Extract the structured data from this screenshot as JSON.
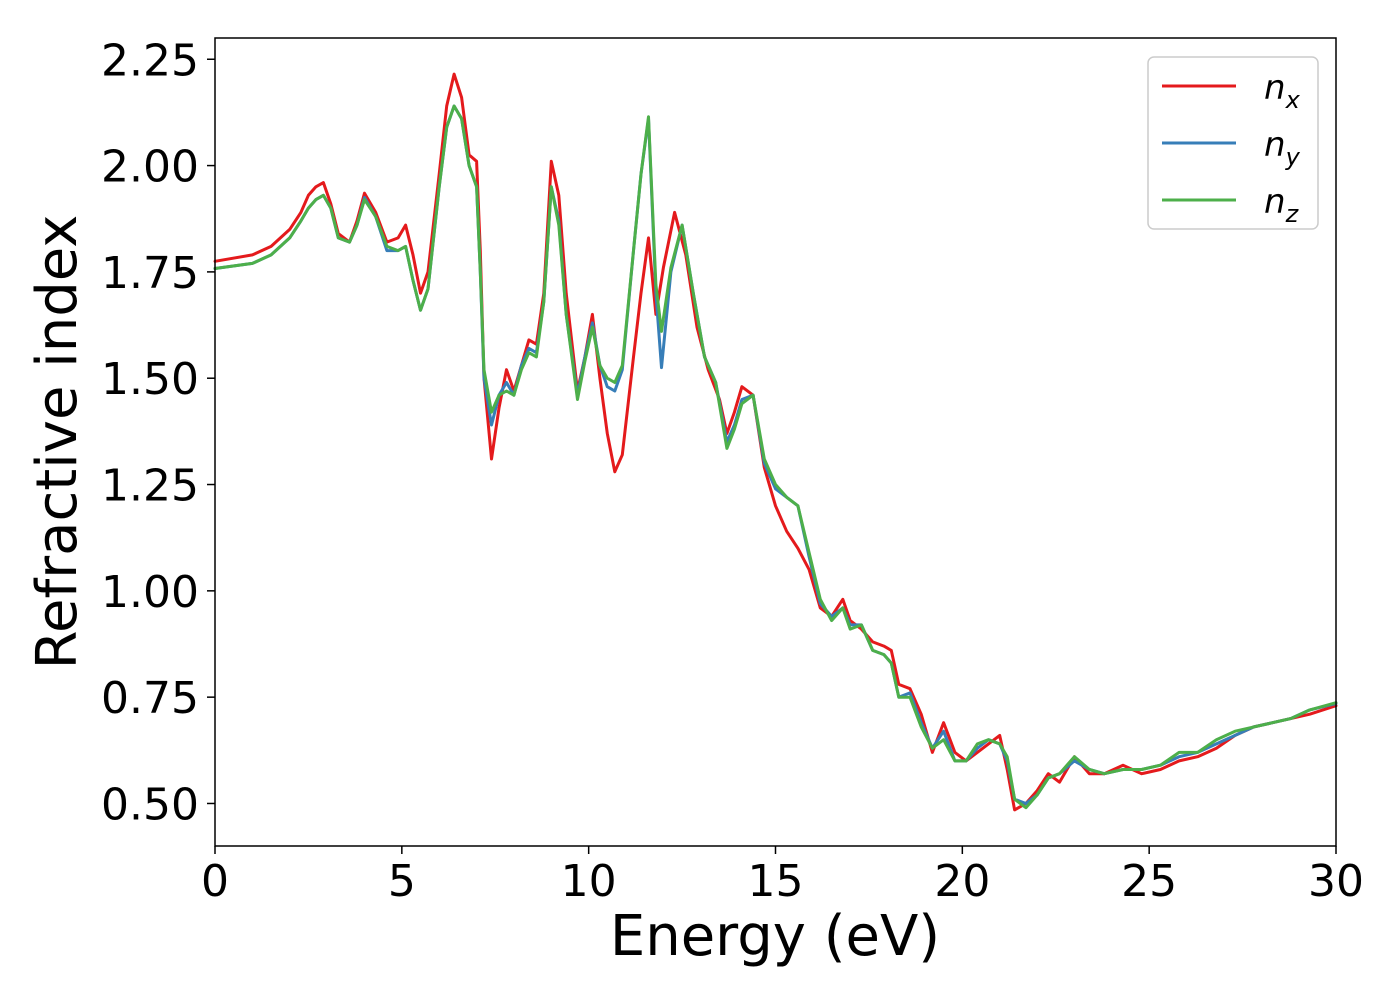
{
  "chart_data": {
    "type": "line",
    "title": "",
    "xlabel": "Energy (eV)",
    "ylabel": "Refractive index",
    "xlim": [
      0,
      30
    ],
    "ylim": [
      0.4,
      2.3
    ],
    "xticks": [
      0,
      5,
      10,
      15,
      20,
      25,
      30
    ],
    "xtick_labels": [
      "0",
      "5",
      "10",
      "15",
      "20",
      "25",
      "30"
    ],
    "yticks": [
      0.5,
      0.75,
      1.0,
      1.25,
      1.5,
      1.75,
      2.0,
      2.25
    ],
    "ytick_labels": [
      "0.50",
      "0.75",
      "1.00",
      "1.25",
      "1.50",
      "1.75",
      "2.00",
      "2.25"
    ],
    "grid": false,
    "legend": "top-right",
    "series": [
      {
        "name": "n",
        "subscript": "x",
        "color": "#e41a1c",
        "points": [
          [
            0,
            1.775
          ],
          [
            1,
            1.79
          ],
          [
            1.5,
            1.81
          ],
          [
            2,
            1.85
          ],
          [
            2.3,
            1.89
          ],
          [
            2.5,
            1.93
          ],
          [
            2.7,
            1.95
          ],
          [
            2.9,
            1.96
          ],
          [
            3.1,
            1.91
          ],
          [
            3.3,
            1.84
          ],
          [
            3.6,
            1.82
          ],
          [
            3.8,
            1.87
          ],
          [
            4.0,
            1.935
          ],
          [
            4.3,
            1.89
          ],
          [
            4.6,
            1.82
          ],
          [
            4.9,
            1.83
          ],
          [
            5.1,
            1.86
          ],
          [
            5.3,
            1.79
          ],
          [
            5.5,
            1.7
          ],
          [
            5.7,
            1.75
          ],
          [
            6.0,
            1.98
          ],
          [
            6.2,
            2.14
          ],
          [
            6.4,
            2.215
          ],
          [
            6.6,
            2.16
          ],
          [
            6.8,
            2.025
          ],
          [
            7.0,
            2.01
          ],
          [
            7.1,
            1.8
          ],
          [
            7.2,
            1.5
          ],
          [
            7.4,
            1.31
          ],
          [
            7.6,
            1.43
          ],
          [
            7.8,
            1.52
          ],
          [
            8.0,
            1.47
          ],
          [
            8.2,
            1.53
          ],
          [
            8.4,
            1.59
          ],
          [
            8.6,
            1.58
          ],
          [
            8.8,
            1.7
          ],
          [
            9.0,
            2.01
          ],
          [
            9.2,
            1.93
          ],
          [
            9.4,
            1.7
          ],
          [
            9.7,
            1.47
          ],
          [
            9.9,
            1.55
          ],
          [
            10.1,
            1.65
          ],
          [
            10.3,
            1.5
          ],
          [
            10.5,
            1.37
          ],
          [
            10.7,
            1.28
          ],
          [
            10.9,
            1.32
          ],
          [
            11.2,
            1.55
          ],
          [
            11.4,
            1.7
          ],
          [
            11.6,
            1.83
          ],
          [
            11.8,
            1.65
          ],
          [
            12.0,
            1.76
          ],
          [
            12.3,
            1.89
          ],
          [
            12.6,
            1.79
          ],
          [
            12.9,
            1.62
          ],
          [
            13.2,
            1.52
          ],
          [
            13.5,
            1.45
          ],
          [
            13.7,
            1.37
          ],
          [
            13.9,
            1.42
          ],
          [
            14.1,
            1.48
          ],
          [
            14.4,
            1.46
          ],
          [
            14.7,
            1.29
          ],
          [
            15.0,
            1.2
          ],
          [
            15.3,
            1.14
          ],
          [
            15.6,
            1.1
          ],
          [
            15.9,
            1.05
          ],
          [
            16.2,
            0.96
          ],
          [
            16.5,
            0.94
          ],
          [
            16.8,
            0.98
          ],
          [
            17.0,
            0.93
          ],
          [
            17.3,
            0.91
          ],
          [
            17.6,
            0.88
          ],
          [
            17.9,
            0.87
          ],
          [
            18.1,
            0.86
          ],
          [
            18.3,
            0.78
          ],
          [
            18.6,
            0.77
          ],
          [
            18.9,
            0.71
          ],
          [
            19.2,
            0.62
          ],
          [
            19.5,
            0.69
          ],
          [
            19.8,
            0.62
          ],
          [
            20.1,
            0.6
          ],
          [
            20.4,
            0.62
          ],
          [
            20.7,
            0.64
          ],
          [
            21.0,
            0.66
          ],
          [
            21.2,
            0.58
          ],
          [
            21.4,
            0.485
          ],
          [
            21.7,
            0.5
          ],
          [
            22.0,
            0.53
          ],
          [
            22.3,
            0.57
          ],
          [
            22.6,
            0.55
          ],
          [
            23.0,
            0.61
          ],
          [
            23.4,
            0.57
          ],
          [
            23.8,
            0.57
          ],
          [
            24.3,
            0.59
          ],
          [
            24.8,
            0.57
          ],
          [
            25.3,
            0.58
          ],
          [
            25.8,
            0.6
          ],
          [
            26.3,
            0.61
          ],
          [
            26.8,
            0.63
          ],
          [
            27.3,
            0.66
          ],
          [
            27.8,
            0.68
          ],
          [
            28.3,
            0.69
          ],
          [
            28.8,
            0.7
          ],
          [
            29.3,
            0.71
          ],
          [
            30,
            0.73
          ]
        ]
      },
      {
        "name": "n",
        "subscript": "y",
        "color": "#377eb8",
        "points": [
          [
            0,
            1.758
          ],
          [
            1,
            1.77
          ],
          [
            1.5,
            1.79
          ],
          [
            2,
            1.83
          ],
          [
            2.3,
            1.87
          ],
          [
            2.5,
            1.9
          ],
          [
            2.7,
            1.92
          ],
          [
            2.9,
            1.93
          ],
          [
            3.1,
            1.9
          ],
          [
            3.3,
            1.83
          ],
          [
            3.6,
            1.82
          ],
          [
            3.8,
            1.86
          ],
          [
            4.0,
            1.925
          ],
          [
            4.3,
            1.88
          ],
          [
            4.6,
            1.8
          ],
          [
            4.9,
            1.8
          ],
          [
            5.1,
            1.81
          ],
          [
            5.3,
            1.73
          ],
          [
            5.5,
            1.66
          ],
          [
            5.7,
            1.71
          ],
          [
            6.0,
            1.95
          ],
          [
            6.2,
            2.09
          ],
          [
            6.4,
            2.14
          ],
          [
            6.6,
            2.11
          ],
          [
            6.8,
            2.0
          ],
          [
            7.0,
            1.95
          ],
          [
            7.1,
            1.75
          ],
          [
            7.2,
            1.5
          ],
          [
            7.4,
            1.39
          ],
          [
            7.6,
            1.46
          ],
          [
            7.8,
            1.49
          ],
          [
            8.0,
            1.46
          ],
          [
            8.2,
            1.53
          ],
          [
            8.4,
            1.57
          ],
          [
            8.6,
            1.56
          ],
          [
            8.8,
            1.68
          ],
          [
            9.0,
            1.95
          ],
          [
            9.2,
            1.87
          ],
          [
            9.4,
            1.65
          ],
          [
            9.7,
            1.46
          ],
          [
            9.9,
            1.55
          ],
          [
            10.1,
            1.63
          ],
          [
            10.3,
            1.53
          ],
          [
            10.5,
            1.48
          ],
          [
            10.7,
            1.47
          ],
          [
            10.9,
            1.52
          ],
          [
            11.2,
            1.8
          ],
          [
            11.4,
            1.98
          ],
          [
            11.6,
            2.11
          ],
          [
            11.8,
            1.7
          ],
          [
            11.95,
            1.525
          ],
          [
            12.2,
            1.75
          ],
          [
            12.5,
            1.86
          ],
          [
            12.8,
            1.7
          ],
          [
            13.1,
            1.55
          ],
          [
            13.4,
            1.49
          ],
          [
            13.7,
            1.35
          ],
          [
            13.9,
            1.39
          ],
          [
            14.1,
            1.45
          ],
          [
            14.4,
            1.46
          ],
          [
            14.7,
            1.3
          ],
          [
            15.0,
            1.24
          ],
          [
            15.3,
            1.22
          ],
          [
            15.6,
            1.2
          ],
          [
            15.9,
            1.08
          ],
          [
            16.2,
            0.97
          ],
          [
            16.5,
            0.94
          ],
          [
            16.8,
            0.96
          ],
          [
            17.0,
            0.92
          ],
          [
            17.3,
            0.92
          ],
          [
            17.6,
            0.86
          ],
          [
            17.9,
            0.85
          ],
          [
            18.1,
            0.83
          ],
          [
            18.3,
            0.75
          ],
          [
            18.6,
            0.76
          ],
          [
            18.9,
            0.69
          ],
          [
            19.2,
            0.63
          ],
          [
            19.5,
            0.67
          ],
          [
            19.8,
            0.6
          ],
          [
            20.1,
            0.6
          ],
          [
            20.4,
            0.63
          ],
          [
            20.7,
            0.65
          ],
          [
            21.0,
            0.64
          ],
          [
            21.2,
            0.6
          ],
          [
            21.4,
            0.51
          ],
          [
            21.7,
            0.5
          ],
          [
            22.0,
            0.52
          ],
          [
            22.3,
            0.56
          ],
          [
            22.6,
            0.57
          ],
          [
            23.0,
            0.6
          ],
          [
            23.4,
            0.58
          ],
          [
            23.8,
            0.57
          ],
          [
            24.3,
            0.58
          ],
          [
            24.8,
            0.58
          ],
          [
            25.3,
            0.59
          ],
          [
            25.8,
            0.61
          ],
          [
            26.3,
            0.62
          ],
          [
            26.8,
            0.64
          ],
          [
            27.3,
            0.66
          ],
          [
            27.8,
            0.68
          ],
          [
            28.3,
            0.69
          ],
          [
            28.8,
            0.7
          ],
          [
            29.3,
            0.72
          ],
          [
            30,
            0.735
          ]
        ]
      },
      {
        "name": "n",
        "subscript": "z",
        "color": "#4daf4a",
        "points": [
          [
            0,
            1.758
          ],
          [
            1,
            1.77
          ],
          [
            1.5,
            1.79
          ],
          [
            2,
            1.83
          ],
          [
            2.3,
            1.87
          ],
          [
            2.5,
            1.9
          ],
          [
            2.7,
            1.92
          ],
          [
            2.9,
            1.93
          ],
          [
            3.1,
            1.9
          ],
          [
            3.3,
            1.83
          ],
          [
            3.6,
            1.82
          ],
          [
            3.8,
            1.86
          ],
          [
            4.0,
            1.92
          ],
          [
            4.3,
            1.88
          ],
          [
            4.6,
            1.81
          ],
          [
            4.9,
            1.8
          ],
          [
            5.1,
            1.81
          ],
          [
            5.3,
            1.73
          ],
          [
            5.5,
            1.66
          ],
          [
            5.7,
            1.71
          ],
          [
            6.0,
            1.95
          ],
          [
            6.2,
            2.09
          ],
          [
            6.4,
            2.14
          ],
          [
            6.6,
            2.11
          ],
          [
            6.8,
            2.0
          ],
          [
            7.0,
            1.95
          ],
          [
            7.1,
            1.75
          ],
          [
            7.2,
            1.52
          ],
          [
            7.4,
            1.42
          ],
          [
            7.6,
            1.46
          ],
          [
            7.8,
            1.47
          ],
          [
            8.0,
            1.46
          ],
          [
            8.2,
            1.52
          ],
          [
            8.4,
            1.56
          ],
          [
            8.6,
            1.55
          ],
          [
            8.8,
            1.68
          ],
          [
            9.0,
            1.95
          ],
          [
            9.2,
            1.86
          ],
          [
            9.4,
            1.65
          ],
          [
            9.7,
            1.45
          ],
          [
            9.9,
            1.54
          ],
          [
            10.1,
            1.62
          ],
          [
            10.3,
            1.53
          ],
          [
            10.5,
            1.5
          ],
          [
            10.7,
            1.49
          ],
          [
            10.9,
            1.53
          ],
          [
            11.2,
            1.8
          ],
          [
            11.4,
            1.98
          ],
          [
            11.6,
            2.115
          ],
          [
            11.8,
            1.72
          ],
          [
            11.95,
            1.61
          ],
          [
            12.2,
            1.76
          ],
          [
            12.5,
            1.86
          ],
          [
            12.8,
            1.7
          ],
          [
            13.1,
            1.55
          ],
          [
            13.4,
            1.49
          ],
          [
            13.7,
            1.335
          ],
          [
            13.9,
            1.38
          ],
          [
            14.1,
            1.44
          ],
          [
            14.4,
            1.46
          ],
          [
            14.7,
            1.31
          ],
          [
            15.0,
            1.25
          ],
          [
            15.3,
            1.22
          ],
          [
            15.6,
            1.2
          ],
          [
            15.9,
            1.09
          ],
          [
            16.2,
            0.98
          ],
          [
            16.5,
            0.93
          ],
          [
            16.8,
            0.96
          ],
          [
            17.0,
            0.91
          ],
          [
            17.3,
            0.92
          ],
          [
            17.6,
            0.86
          ],
          [
            17.9,
            0.85
          ],
          [
            18.1,
            0.83
          ],
          [
            18.3,
            0.75
          ],
          [
            18.6,
            0.75
          ],
          [
            18.9,
            0.68
          ],
          [
            19.2,
            0.63
          ],
          [
            19.5,
            0.65
          ],
          [
            19.8,
            0.6
          ],
          [
            20.1,
            0.6
          ],
          [
            20.4,
            0.64
          ],
          [
            20.7,
            0.65
          ],
          [
            21.0,
            0.64
          ],
          [
            21.2,
            0.61
          ],
          [
            21.4,
            0.51
          ],
          [
            21.7,
            0.49
          ],
          [
            22.0,
            0.52
          ],
          [
            22.3,
            0.56
          ],
          [
            22.6,
            0.57
          ],
          [
            23.0,
            0.61
          ],
          [
            23.4,
            0.58
          ],
          [
            23.8,
            0.57
          ],
          [
            24.3,
            0.58
          ],
          [
            24.8,
            0.58
          ],
          [
            25.3,
            0.59
          ],
          [
            25.8,
            0.62
          ],
          [
            26.3,
            0.62
          ],
          [
            26.8,
            0.65
          ],
          [
            27.3,
            0.67
          ],
          [
            27.8,
            0.68
          ],
          [
            28.3,
            0.69
          ],
          [
            28.8,
            0.7
          ],
          [
            29.3,
            0.72
          ],
          [
            30,
            0.737
          ]
        ]
      }
    ]
  }
}
